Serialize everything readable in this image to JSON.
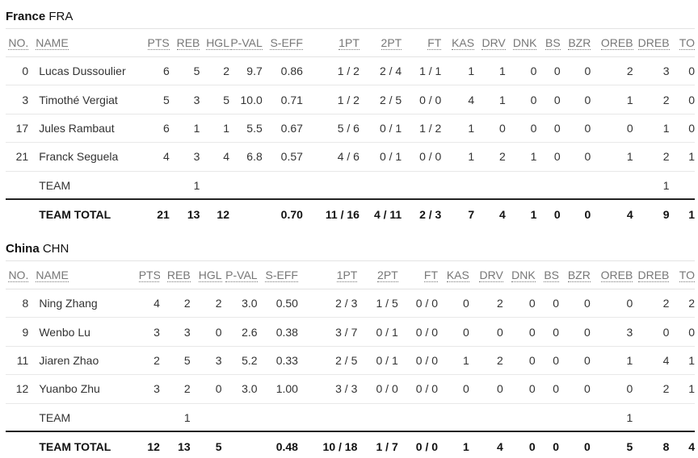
{
  "columns": [
    "NO.",
    "NAME",
    "PTS",
    "REB",
    "HGL",
    "P-VAL",
    "S-EFF",
    "1PT",
    "2PT",
    "FT",
    "KAS",
    "DRV",
    "DNK",
    "BS",
    "BZR",
    "OREB",
    "DREB",
    "TO"
  ],
  "teams": [
    {
      "name": "France",
      "code": "FRA",
      "players": [
        {
          "no": "0",
          "name": "Lucas Dussoulier",
          "pts": "6",
          "reb": "5",
          "hgl": "2",
          "pval": "9.7",
          "seff": "0.86",
          "pt1": "1 / 2",
          "pt2": "2 / 4",
          "ft": "1 / 1",
          "kas": "1",
          "drv": "1",
          "dnk": "0",
          "bs": "0",
          "bzr": "0",
          "oreb": "2",
          "dreb": "3",
          "to": "0"
        },
        {
          "no": "3",
          "name": "Timothé Vergiat",
          "pts": "5",
          "reb": "3",
          "hgl": "5",
          "pval": "10.0",
          "seff": "0.71",
          "pt1": "1 / 2",
          "pt2": "2 / 5",
          "ft": "0 / 0",
          "kas": "4",
          "drv": "1",
          "dnk": "0",
          "bs": "0",
          "bzr": "0",
          "oreb": "1",
          "dreb": "2",
          "to": "0"
        },
        {
          "no": "17",
          "name": "Jules Rambaut",
          "pts": "6",
          "reb": "1",
          "hgl": "1",
          "pval": "5.5",
          "seff": "0.67",
          "pt1": "5 / 6",
          "pt2": "0 / 1",
          "ft": "1 / 2",
          "kas": "1",
          "drv": "0",
          "dnk": "0",
          "bs": "0",
          "bzr": "0",
          "oreb": "0",
          "dreb": "1",
          "to": "0"
        },
        {
          "no": "21",
          "name": "Franck Seguela",
          "pts": "4",
          "reb": "3",
          "hgl": "4",
          "pval": "6.8",
          "seff": "0.57",
          "pt1": "4 / 6",
          "pt2": "0 / 1",
          "ft": "0 / 0",
          "kas": "1",
          "drv": "2",
          "dnk": "1",
          "bs": "0",
          "bzr": "0",
          "oreb": "1",
          "dreb": "2",
          "to": "1"
        },
        {
          "no": "",
          "name": "TEAM",
          "pts": "",
          "reb": "1",
          "hgl": "",
          "pval": "",
          "seff": "",
          "pt1": "",
          "pt2": "",
          "ft": "",
          "kas": "",
          "drv": "",
          "dnk": "",
          "bs": "",
          "bzr": "",
          "oreb": "",
          "dreb": "1",
          "to": ""
        }
      ],
      "total": {
        "no": "",
        "name": "TEAM TOTAL",
        "pts": "21",
        "reb": "13",
        "hgl": "12",
        "pval": "",
        "seff": "0.70",
        "pt1": "11 / 16",
        "pt2": "4 / 11",
        "ft": "2 / 3",
        "kas": "7",
        "drv": "4",
        "dnk": "1",
        "bs": "0",
        "bzr": "0",
        "oreb": "4",
        "dreb": "9",
        "to": "1"
      }
    },
    {
      "name": "China",
      "code": "CHN",
      "players": [
        {
          "no": "8",
          "name": "Ning Zhang",
          "pts": "4",
          "reb": "2",
          "hgl": "2",
          "pval": "3.0",
          "seff": "0.50",
          "pt1": "2 / 3",
          "pt2": "1 / 5",
          "ft": "0 / 0",
          "kas": "0",
          "drv": "2",
          "dnk": "0",
          "bs": "0",
          "bzr": "0",
          "oreb": "0",
          "dreb": "2",
          "to": "2"
        },
        {
          "no": "9",
          "name": "Wenbo Lu",
          "pts": "3",
          "reb": "3",
          "hgl": "0",
          "pval": "2.6",
          "seff": "0.38",
          "pt1": "3 / 7",
          "pt2": "0 / 1",
          "ft": "0 / 0",
          "kas": "0",
          "drv": "0",
          "dnk": "0",
          "bs": "0",
          "bzr": "0",
          "oreb": "3",
          "dreb": "0",
          "to": "0"
        },
        {
          "no": "11",
          "name": "Jiaren Zhao",
          "pts": "2",
          "reb": "5",
          "hgl": "3",
          "pval": "5.2",
          "seff": "0.33",
          "pt1": "2 / 5",
          "pt2": "0 / 1",
          "ft": "0 / 0",
          "kas": "1",
          "drv": "2",
          "dnk": "0",
          "bs": "0",
          "bzr": "0",
          "oreb": "1",
          "dreb": "4",
          "to": "1"
        },
        {
          "no": "12",
          "name": "Yuanbo Zhu",
          "pts": "3",
          "reb": "2",
          "hgl": "0",
          "pval": "3.0",
          "seff": "1.00",
          "pt1": "3 / 3",
          "pt2": "0 / 0",
          "ft": "0 / 0",
          "kas": "0",
          "drv": "0",
          "dnk": "0",
          "bs": "0",
          "bzr": "0",
          "oreb": "0",
          "dreb": "2",
          "to": "1"
        },
        {
          "no": "",
          "name": "TEAM",
          "pts": "",
          "reb": "1",
          "hgl": "",
          "pval": "",
          "seff": "",
          "pt1": "",
          "pt2": "",
          "ft": "",
          "kas": "",
          "drv": "",
          "dnk": "",
          "bs": "",
          "bzr": "",
          "oreb": "1",
          "dreb": "",
          "to": ""
        }
      ],
      "total": {
        "no": "",
        "name": "TEAM TOTAL",
        "pts": "12",
        "reb": "13",
        "hgl": "5",
        "pval": "",
        "seff": "0.48",
        "pt1": "10 / 18",
        "pt2": "1 / 7",
        "ft": "0 / 0",
        "kas": "1",
        "drv": "4",
        "dnk": "0",
        "bs": "0",
        "bzr": "0",
        "oreb": "5",
        "dreb": "8",
        "to": "4"
      }
    }
  ]
}
